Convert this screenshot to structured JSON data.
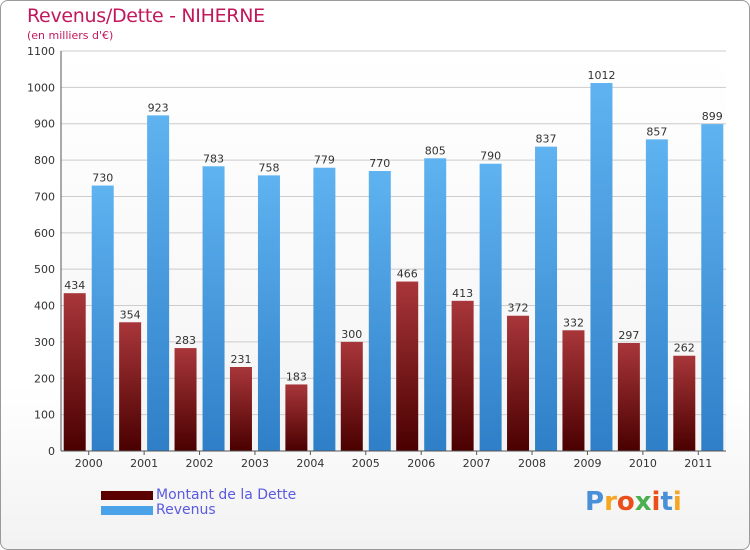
{
  "title": "Revenus/Dette - NIHERNE",
  "subtitle": "(en milliers d'€)",
  "logo": {
    "text": "Proxiti",
    "letter_colors": [
      "#4a90d9",
      "#f5a623",
      "#e94e1b",
      "#4caf50",
      "#e94e1b",
      "#4a90d9",
      "#f5a623"
    ]
  },
  "colors": {
    "dette": "#7a0f14",
    "revenus": "#4aa3e8",
    "axis_text": "#333333",
    "grid": "#cccccc"
  },
  "legend": [
    {
      "name": "Montant de la Dette",
      "color": "#5a0000"
    },
    {
      "name": "Revenus",
      "color": "#4aa3e8"
    }
  ],
  "chart_data": {
    "type": "bar",
    "categories": [
      "2000",
      "2001",
      "2002",
      "2003",
      "2004",
      "2005",
      "2006",
      "2007",
      "2008",
      "2009",
      "2010",
      "2011"
    ],
    "series": [
      {
        "name": "Montant de la Dette",
        "values": [
          434,
          354,
          283,
          231,
          183,
          300,
          466,
          413,
          372,
          332,
          297,
          262
        ]
      },
      {
        "name": "Revenus",
        "values": [
          730,
          923,
          783,
          758,
          779,
          770,
          805,
          790,
          837,
          1012,
          857,
          899
        ]
      }
    ],
    "yticks": [
      0,
      100,
      200,
      300,
      400,
      500,
      600,
      700,
      800,
      900,
      1000,
      1100
    ],
    "ylim": [
      0,
      1100
    ],
    "grid": true,
    "legend_position": "bottom-left"
  }
}
